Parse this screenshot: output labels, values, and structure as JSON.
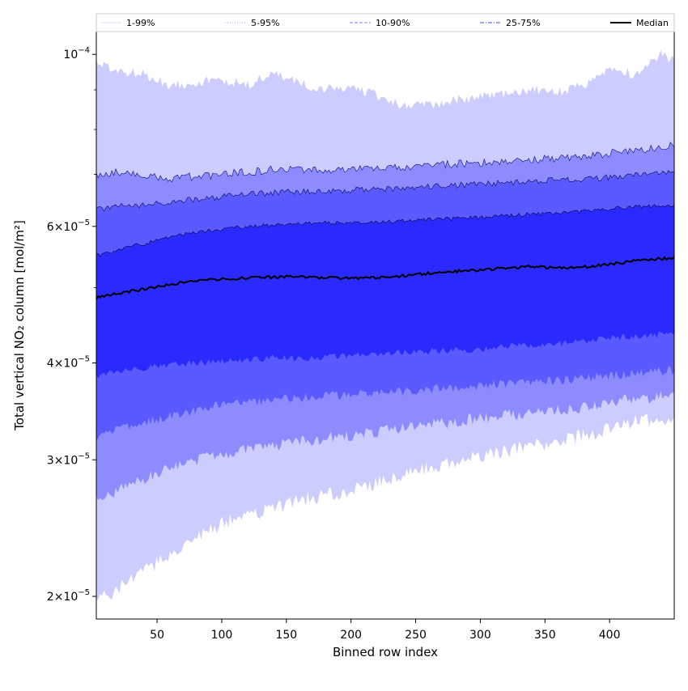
{
  "chart_data": {
    "type": "area",
    "xlabel": "Binned row index",
    "ylabel": "Total vertical NO₂ column [mol/m²]",
    "xlim": [
      3,
      450
    ],
    "ylim": [
      1.87e-05,
      0.000107
    ],
    "yscale": "log",
    "grid": false,
    "legend_position": "top, spanning full width",
    "x_ticks": [
      50,
      100,
      150,
      200,
      250,
      300,
      350,
      400
    ],
    "x_tick_labels": [
      "50",
      "100",
      "150",
      "200",
      "250",
      "300",
      "350",
      "400"
    ],
    "y_ticks": [
      2e-05,
      3e-05,
      4e-05,
      6e-05,
      0.0001
    ],
    "y_tick_labels": [
      {
        "mant": "2",
        "exp": "−5",
        "prefix": "2×10"
      },
      {
        "mant": "3",
        "exp": "−5",
        "prefix": "3×10"
      },
      {
        "mant": "4",
        "exp": "−5",
        "prefix": "4×10"
      },
      {
        "mant": "6",
        "exp": "−5",
        "prefix": "6×10"
      },
      {
        "mant": "1",
        "exp": "−4",
        "prefix": "10"
      }
    ],
    "x": [
      3,
      20,
      40,
      60,
      80,
      100,
      120,
      140,
      160,
      180,
      200,
      220,
      240,
      260,
      280,
      300,
      320,
      340,
      360,
      380,
      400,
      420,
      440,
      450
    ],
    "bands": [
      {
        "name": "1-99%",
        "color": "#ccccff",
        "line_color": "#ccccff",
        "lower": [
          1.97e-05,
          2.05e-05,
          2.15e-05,
          2.27e-05,
          2.38e-05,
          2.48e-05,
          2.55e-05,
          2.6e-05,
          2.66e-05,
          2.7e-05,
          2.74e-05,
          2.8e-05,
          2.86e-05,
          2.93e-05,
          2.98e-05,
          3.03e-05,
          3.08e-05,
          3.13e-05,
          3.17e-05,
          3.22e-05,
          3.3e-05,
          3.38e-05,
          3.35e-05,
          3.36e-05
        ],
        "upper": [
          9.7e-05,
          9.5e-05,
          9.4e-05,
          9.1e-05,
          9.2e-05,
          9.25e-05,
          9.1e-05,
          9.45e-05,
          9.15e-05,
          9e-05,
          9.05e-05,
          8.85e-05,
          8.55e-05,
          8.6e-05,
          8.7e-05,
          8.8e-05,
          8.85e-05,
          9e-05,
          8.9e-05,
          9.1e-05,
          9.6e-05,
          9.4e-05,
          0.0001,
          9.8e-05
        ]
      },
      {
        "name": "5-95%",
        "color": "#8c8cff",
        "line_color": "#0a0a7a",
        "lower": [
          2.65e-05,
          2.75e-05,
          2.84e-05,
          2.92e-05,
          3e-05,
          3.05e-05,
          3.1e-05,
          3.13e-05,
          3.16e-05,
          3.2e-05,
          3.23e-05,
          3.26e-05,
          3.3e-05,
          3.33e-05,
          3.36e-05,
          3.4e-05,
          3.42e-05,
          3.45e-05,
          3.48e-05,
          3.51e-05,
          3.55e-05,
          3.6e-05,
          3.62e-05,
          3.65e-05
        ],
        "upper": [
          7e-05,
          7.05e-05,
          6.95e-05,
          6.92e-05,
          6.96e-05,
          7e-05,
          7.05e-05,
          7.1e-05,
          7.1e-05,
          7.08e-05,
          7.1e-05,
          7.12e-05,
          7.15e-05,
          7.2e-05,
          7.22e-05,
          7.25e-05,
          7.28e-05,
          7.32e-05,
          7.35e-05,
          7.38e-05,
          7.45e-05,
          7.52e-05,
          7.6e-05,
          7.62e-05
        ]
      },
      {
        "name": "10-90%",
        "color": "#5a5aff",
        "line_color": "#08084f",
        "lower": [
          3.2e-05,
          3.28e-05,
          3.35e-05,
          3.42e-05,
          3.48e-05,
          3.53e-05,
          3.56e-05,
          3.59e-05,
          3.61e-05,
          3.63e-05,
          3.64e-05,
          3.66e-05,
          3.68e-05,
          3.7e-05,
          3.72e-05,
          3.74e-05,
          3.76e-05,
          3.78e-05,
          3.8e-05,
          3.82e-05,
          3.85e-05,
          3.88e-05,
          3.9e-05,
          3.92e-05
        ],
        "upper": [
          6.3e-05,
          6.38e-05,
          6.4e-05,
          6.45e-05,
          6.5e-05,
          6.55e-05,
          6.6e-05,
          6.63e-05,
          6.65e-05,
          6.67e-05,
          6.68e-05,
          6.7e-05,
          6.72e-05,
          6.75e-05,
          6.78e-05,
          6.8e-05,
          6.83e-05,
          6.86e-05,
          6.88e-05,
          6.9e-05,
          6.94e-05,
          6.98e-05,
          7.02e-05,
          7.04e-05
        ]
      },
      {
        "name": "25-75%",
        "color": "#2a2aff",
        "line_color": "#06063f",
        "lower": [
          3.85e-05,
          3.9e-05,
          3.94e-05,
          3.97e-05,
          4e-05,
          4.02e-05,
          4.04e-05,
          4.06e-05,
          4.05e-05,
          4.07e-05,
          4.09e-05,
          4.1e-05,
          4.12e-05,
          4.14e-05,
          4.15e-05,
          4.17e-05,
          4.2e-05,
          4.22e-05,
          4.24e-05,
          4.27e-05,
          4.3e-05,
          4.33e-05,
          4.35e-05,
          4.36e-05
        ],
        "upper": [
          5.5e-05,
          5.6e-05,
          5.7e-05,
          5.8e-05,
          5.9e-05,
          5.95e-05,
          6e-05,
          6.02e-05,
          6.05e-05,
          6.06e-05,
          6.07e-05,
          6.08e-05,
          6.1e-05,
          6.12e-05,
          6.14e-05,
          6.16e-05,
          6.19e-05,
          6.22e-05,
          6.25e-05,
          6.28e-05,
          6.32e-05,
          6.36e-05,
          6.38e-05,
          6.4e-05
        ]
      }
    ],
    "median": {
      "name": "Median",
      "color": "#000000",
      "values": [
        4.85e-05,
        4.92e-05,
        4.98e-05,
        5.05e-05,
        5.1e-05,
        5.13e-05,
        5.15e-05,
        5.16e-05,
        5.17e-05,
        5.15e-05,
        5.14e-05,
        5.15e-05,
        5.18e-05,
        5.22e-05,
        5.25e-05,
        5.27e-05,
        5.3e-05,
        5.33e-05,
        5.3e-05,
        5.32e-05,
        5.36e-05,
        5.42e-05,
        5.45e-05,
        5.46e-05
      ]
    },
    "legend": [
      {
        "label": "1-99%",
        "color": "#dcdcff",
        "style": "solid"
      },
      {
        "label": "5-95%",
        "color": "#a6a6ff",
        "style": "dotted"
      },
      {
        "label": "10-90%",
        "color": "#8080ff",
        "style": "dashed"
      },
      {
        "label": "25-75%",
        "color": "#4040ff",
        "style": "dashdot"
      },
      {
        "label": "Median",
        "color": "#000000",
        "style": "solid-thick"
      }
    ]
  }
}
